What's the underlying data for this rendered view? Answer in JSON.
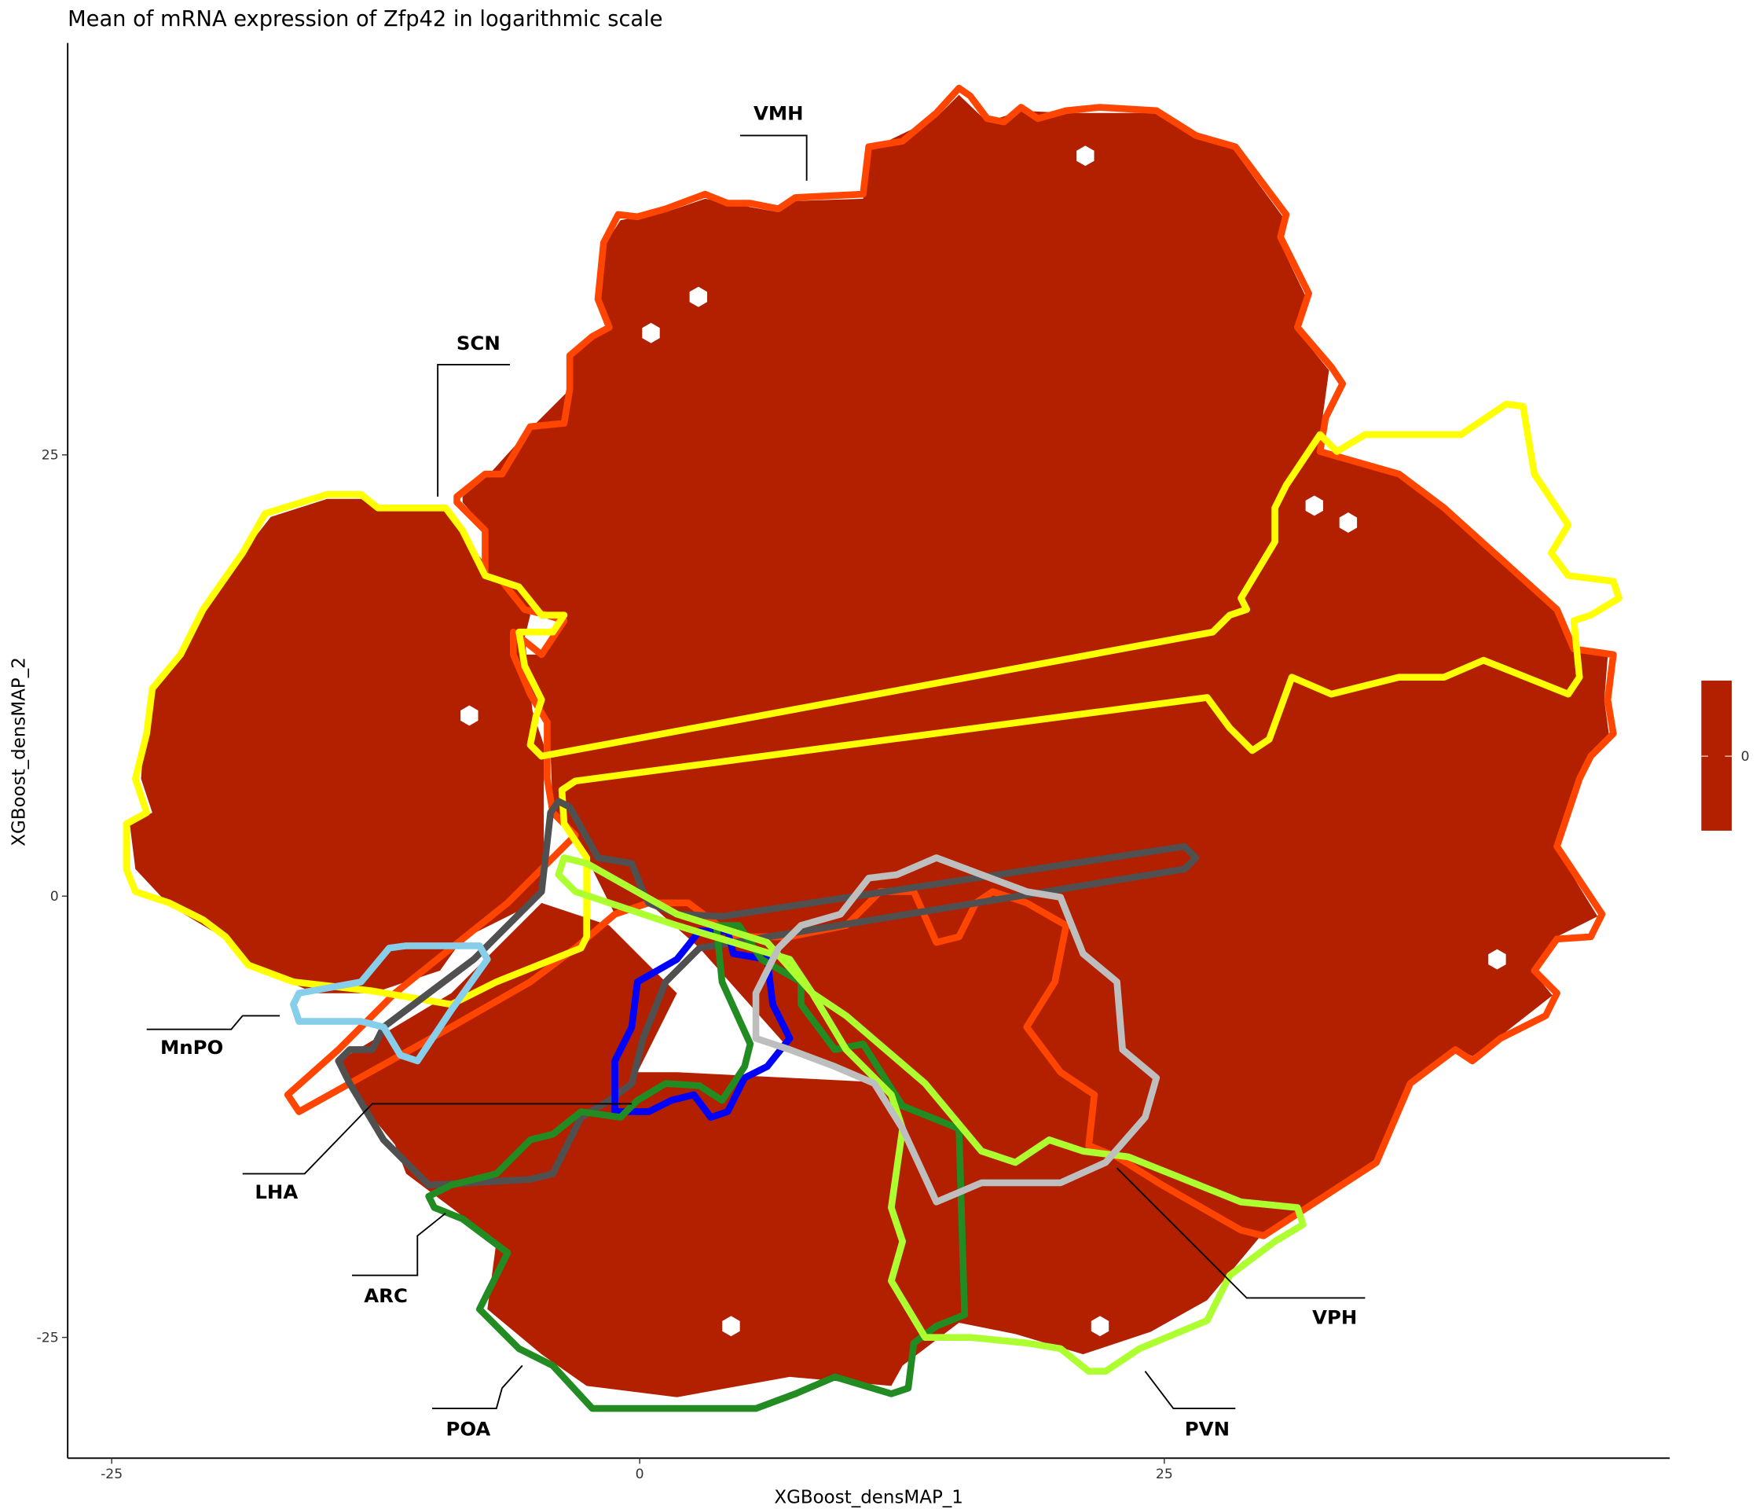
{
  "chart_data": {
    "type": "hexbin",
    "title": "Mean of mRNA expression of Zfp42 in logarithmic scale",
    "xlabel": "XGBoost_densMAP_1",
    "ylabel": "XGBoost_densMAP_2",
    "xticks": [
      "-25",
      "0",
      "25"
    ],
    "yticks": [
      "25",
      "0",
      "-25"
    ],
    "grid": false,
    "fill_color": "#b22000",
    "legend": {
      "placement": "right",
      "ticks": [
        "0"
      ],
      "color": "#b22000"
    },
    "regions": [
      {
        "name": "VMH",
        "color": "#ff4500"
      },
      {
        "name": "SCN",
        "color": "#ffff00"
      },
      {
        "name": "MnPO",
        "color": "#87ceeb"
      },
      {
        "name": "LHA",
        "color": "#505050"
      },
      {
        "name": "ARC",
        "color": "#0000ff"
      },
      {
        "name": "POA",
        "color": "#228b22"
      },
      {
        "name": "PVN",
        "color": "#adff2f"
      },
      {
        "name": "VPH",
        "color": "#bebebe"
      }
    ]
  }
}
